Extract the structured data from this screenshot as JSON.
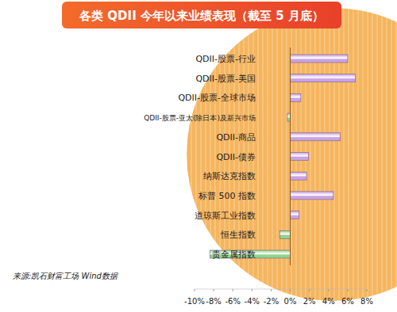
{
  "chart_data": {
    "type": "bar",
    "orientation": "horizontal",
    "title": "各类 QDII 今年以来业绩表现（截至 5 月底）",
    "source": "来源:凯石财富工场  Wind数据",
    "categories": [
      "QDII-股票-行业",
      "QDII-股票-美国",
      "QDII-股票-全球市场",
      "QDII-股票-亚太(除日本)及新兴市场",
      "QDII-商品",
      "QDII-债券",
      "纳斯达克指数",
      "标普 500 指数",
      "道琼斯工业指数",
      "恒生指数",
      "贵金属指数"
    ],
    "values": [
      6.0,
      6.8,
      1.1,
      -0.3,
      5.2,
      1.9,
      1.7,
      4.5,
      0.9,
      -1.1,
      -8.4
    ],
    "colors": [
      "#c9a3e3",
      "#c9a3e3",
      "#c9a3e3",
      "#8fd48a",
      "#c9a3e3",
      "#c9a3e3",
      "#c9a3e3",
      "#c9a3e3",
      "#c9a3e3",
      "#8fd48a",
      "#8fd48a"
    ],
    "xlim": [
      -10,
      8
    ],
    "xticks": [
      {
        "value": -10,
        "label": "-10%"
      },
      {
        "value": -8,
        "label": "-8%"
      },
      {
        "value": -6,
        "label": "-6%"
      },
      {
        "value": -4,
        "label": "-4%"
      },
      {
        "value": -2,
        "label": "-2%"
      },
      {
        "value": 0,
        "label": "0%"
      },
      {
        "value": 2,
        "label": "2%"
      },
      {
        "value": 4,
        "label": "4%"
      },
      {
        "value": 6,
        "label": "6%"
      },
      {
        "value": 8,
        "label": "8%"
      }
    ],
    "grid": false,
    "data_labels": false
  }
}
